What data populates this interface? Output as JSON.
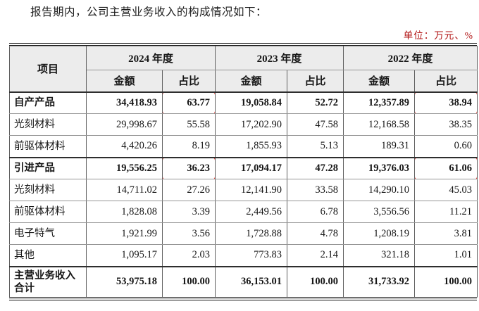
{
  "page": {
    "intro_text": "报告期内，公司主营业务收入的构成情况如下：",
    "unit_label": "单位：万元、%"
  },
  "colors": {
    "highlight_red": "#e2342b",
    "unit_red": "#b01111",
    "header_bg": "#ececec"
  },
  "table": {
    "item_header": "项目",
    "year_groups": [
      {
        "label": "2024 年度"
      },
      {
        "label": "2023 年度"
      },
      {
        "label": "2022 年度"
      }
    ],
    "sub_headers": [
      "金额",
      "占比"
    ],
    "rows": [
      {
        "item": "自产产品",
        "bold": true,
        "section": true,
        "values": [
          "34,418.93",
          "63.77",
          "19,058.84",
          "52.72",
          "12,357.89",
          "38.94"
        ],
        "highlight": [
          1,
          5
        ]
      },
      {
        "item": "光刻材料",
        "bold": false,
        "section": false,
        "values": [
          "29,998.67",
          "55.58",
          "17,202.90",
          "47.58",
          "12,168.58",
          "38.35"
        ],
        "highlight": []
      },
      {
        "item": "前驱体材料",
        "bold": false,
        "section": false,
        "values": [
          "4,420.26",
          "8.19",
          "1,855.93",
          "5.13",
          "189.31",
          "0.60"
        ],
        "highlight": []
      },
      {
        "item": "引进产品",
        "bold": true,
        "section": true,
        "values": [
          "19,556.25",
          "36.23",
          "17,094.17",
          "47.28",
          "19,376.03",
          "61.06"
        ],
        "highlight": [
          1,
          5
        ]
      },
      {
        "item": "光刻材料",
        "bold": false,
        "section": false,
        "values": [
          "14,711.02",
          "27.26",
          "12,141.90",
          "33.58",
          "14,290.10",
          "45.03"
        ],
        "highlight": []
      },
      {
        "item": "前驱体材料",
        "bold": false,
        "section": false,
        "values": [
          "1,828.08",
          "3.39",
          "2,449.56",
          "6.78",
          "3,556.56",
          "11.21"
        ],
        "highlight": []
      },
      {
        "item": "电子特气",
        "bold": false,
        "section": false,
        "values": [
          "1,921.99",
          "3.56",
          "1,728.88",
          "4.78",
          "1,208.19",
          "3.81"
        ],
        "highlight": []
      },
      {
        "item": "其他",
        "bold": false,
        "section": false,
        "values": [
          "1,095.17",
          "2.03",
          "773.83",
          "2.14",
          "321.18",
          "1.01"
        ],
        "highlight": []
      },
      {
        "item": "主营业务收入合计",
        "bold": true,
        "section": true,
        "total": true,
        "values": [
          "53,975.18",
          "100.00",
          "36,153.01",
          "100.00",
          "31,733.92",
          "100.00"
        ],
        "highlight": []
      }
    ]
  }
}
